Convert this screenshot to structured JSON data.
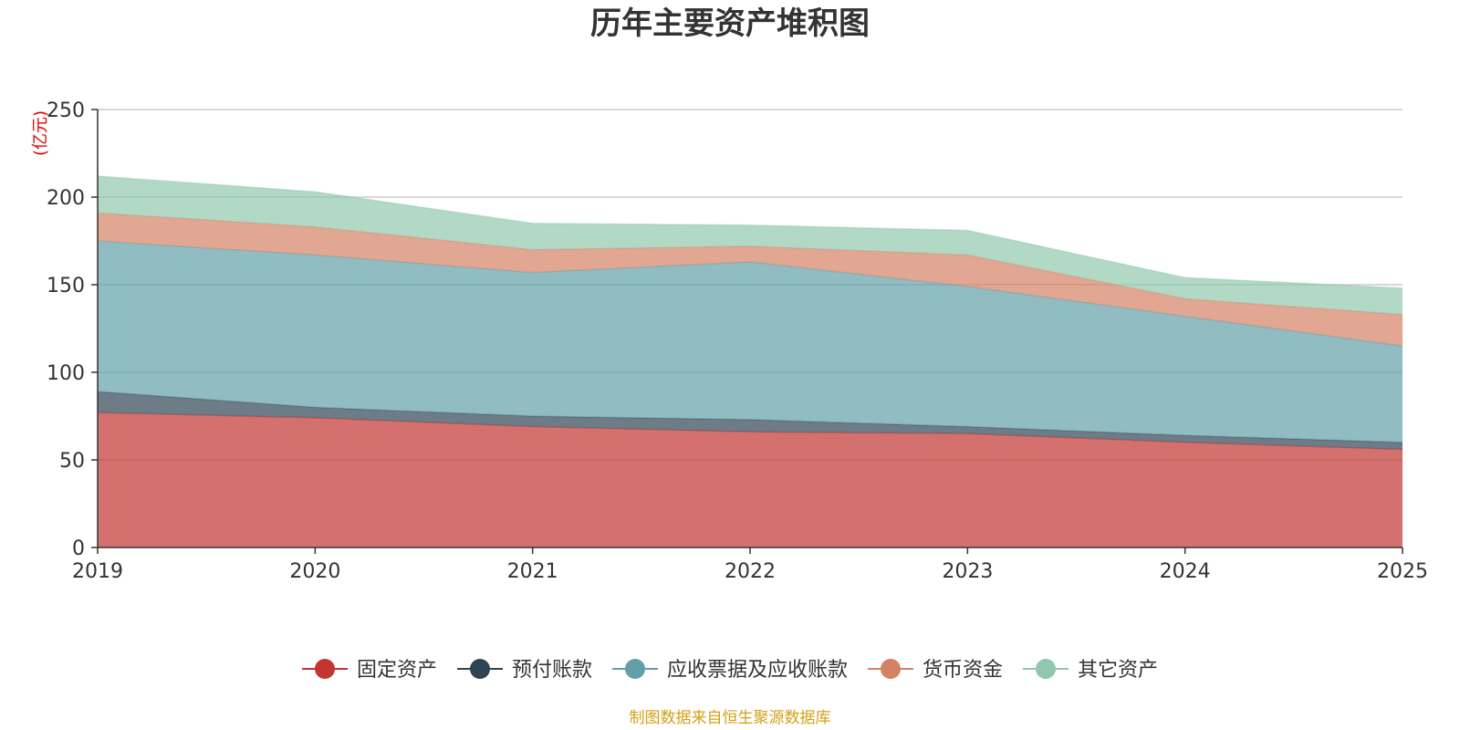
{
  "chart_data": {
    "type": "area",
    "stacked": true,
    "title": "历年主要资产堆积图",
    "ylabel": "(亿元)",
    "xlabel": "",
    "x": [
      "2019",
      "2020",
      "2021",
      "2022",
      "2023",
      "2024",
      "2025"
    ],
    "ylim": [
      0,
      250
    ],
    "yticks": [
      "0",
      "50",
      "100",
      "150",
      "200",
      "250"
    ],
    "grid": true,
    "legend_position": "bottom",
    "series": [
      {
        "name": "固定资产",
        "color": "#c23531",
        "values": [
          77,
          74,
          69,
          66,
          65,
          60,
          56
        ]
      },
      {
        "name": "预付账款",
        "color": "#2f4554",
        "values": [
          12,
          6,
          6,
          7,
          4,
          4,
          4
        ]
      },
      {
        "name": "应收票据及应收账款",
        "color": "#61a0a8",
        "values": [
          86,
          87,
          82,
          90,
          80,
          68,
          55
        ]
      },
      {
        "name": "货币资金",
        "color": "#d48265",
        "values": [
          16,
          16,
          13,
          9,
          18,
          10,
          18
        ]
      },
      {
        "name": "其它资产",
        "color": "#91c7ae",
        "values": [
          21,
          20,
          15,
          12,
          14,
          12,
          15
        ]
      }
    ]
  },
  "source": {
    "text": "制图数据来自恒生聚源数据库",
    "color": "#d4a017"
  },
  "colors": {
    "unit_label": "#e60000",
    "axis": "#333333",
    "grid": "#cccccc"
  }
}
